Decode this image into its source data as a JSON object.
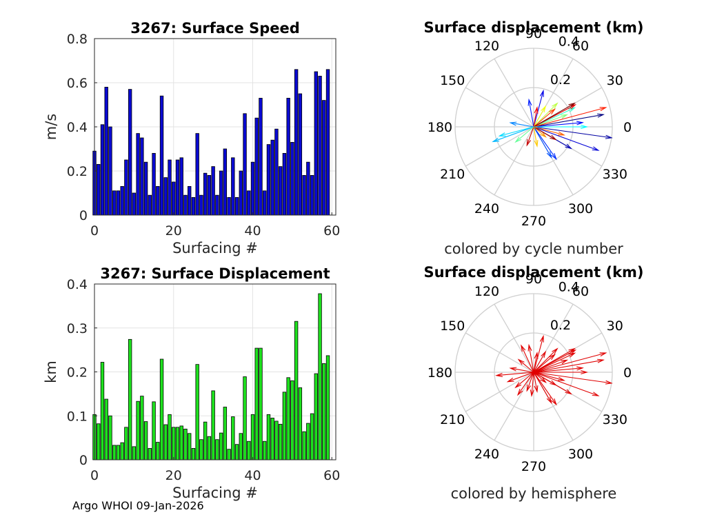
{
  "footer": "Argo WHOI 09-Jan-2026",
  "chart_data": [
    {
      "type": "bar",
      "id": "speed",
      "title": "3267: Surface Speed",
      "xlabel": "Surfacing #",
      "ylabel": "m/s",
      "xlim": [
        0,
        61
      ],
      "ylim": [
        0,
        0.8
      ],
      "xticks": [
        0,
        20,
        40,
        60
      ],
      "yticks": [
        0,
        0.2,
        0.4,
        0.6,
        0.8
      ],
      "bar_color": "#0a0ad2",
      "x": [
        0,
        1,
        2,
        3,
        4,
        5,
        6,
        7,
        8,
        9,
        10,
        11,
        12,
        13,
        14,
        15,
        16,
        17,
        18,
        19,
        20,
        21,
        22,
        23,
        24,
        25,
        26,
        27,
        28,
        29,
        30,
        31,
        32,
        33,
        34,
        35,
        36,
        37,
        38,
        39,
        40,
        41,
        42,
        43,
        44,
        45,
        46,
        47,
        48,
        49,
        50,
        51,
        52,
        53,
        54,
        55,
        56,
        57,
        58,
        59
      ],
      "values": [
        0.29,
        0.23,
        0.41,
        0.58,
        0.4,
        0.11,
        0.11,
        0.13,
        0.25,
        0.57,
        0.1,
        0.37,
        0.35,
        0.24,
        0.09,
        0.28,
        0.13,
        0.54,
        0.17,
        0.25,
        0.15,
        0.25,
        0.26,
        0.09,
        0.13,
        0.08,
        0.37,
        0.09,
        0.19,
        0.18,
        0.22,
        0.09,
        0.2,
        0.3,
        0.08,
        0.26,
        0.08,
        0.2,
        0.46,
        0.11,
        0.24,
        0.44,
        0.53,
        0.11,
        0.32,
        0.34,
        0.39,
        0.22,
        0.28,
        0.53,
        0.33,
        0.66,
        0.55,
        0.18,
        0.24,
        0.18,
        0.65,
        0.63,
        0.52,
        0.66
      ]
    },
    {
      "type": "bar",
      "id": "displacement",
      "title": "3267: Surface Displacement",
      "xlabel": "Surfacing #",
      "ylabel": "km",
      "xlim": [
        0,
        61
      ],
      "ylim": [
        0,
        0.4
      ],
      "xticks": [
        0,
        20,
        40,
        60
      ],
      "yticks": [
        0,
        0.1,
        0.2,
        0.3,
        0.4
      ],
      "bar_color": "#1ee11e",
      "x": [
        0,
        1,
        2,
        3,
        4,
        5,
        6,
        7,
        8,
        9,
        10,
        11,
        12,
        13,
        14,
        15,
        16,
        17,
        18,
        19,
        20,
        21,
        22,
        23,
        24,
        25,
        26,
        27,
        28,
        29,
        30,
        31,
        32,
        33,
        34,
        35,
        36,
        37,
        38,
        39,
        40,
        41,
        42,
        43,
        44,
        45,
        46,
        47,
        48,
        49,
        50,
        51,
        52,
        53,
        54,
        55,
        56,
        57,
        58,
        59
      ],
      "values": [
        0.103,
        0.082,
        0.222,
        0.138,
        0.1,
        0.033,
        0.033,
        0.039,
        0.074,
        0.274,
        0.03,
        0.133,
        0.145,
        0.087,
        0.026,
        0.132,
        0.04,
        0.229,
        0.08,
        0.103,
        0.074,
        0.074,
        0.077,
        0.07,
        0.06,
        0.026,
        0.217,
        0.046,
        0.086,
        0.053,
        0.157,
        0.046,
        0.061,
        0.12,
        0.024,
        0.098,
        0.035,
        0.06,
        0.189,
        0.042,
        0.103,
        0.254,
        0.254,
        0.042,
        0.103,
        0.095,
        0.088,
        0.081,
        0.154,
        0.187,
        0.18,
        0.315,
        0.164,
        0.064,
        0.083,
        0.105,
        0.196,
        0.378,
        0.219,
        0.237
      ]
    },
    {
      "type": "polar-compass",
      "id": "compass-cycle",
      "title": "Surface displacement (km)",
      "caption": "colored by cycle number",
      "rmax": 0.4,
      "rticks": [
        0.2,
        0.4
      ],
      "rtick_labels": [
        "0.2",
        "0.4"
      ],
      "angle_labels": [
        "0",
        "30",
        "60",
        "90",
        "120",
        "150",
        "180",
        "210",
        "240",
        "270",
        "300",
        "330"
      ],
      "colormap": "jet",
      "arrows": [
        {
          "angle": 10,
          "r": 0.36,
          "cycle": 0
        },
        {
          "angle": 352,
          "r": 0.4,
          "cycle": 2
        },
        {
          "angle": 340,
          "r": 0.35,
          "cycle": 5
        },
        {
          "angle": 5,
          "r": 0.25,
          "cycle": 8
        },
        {
          "angle": 330,
          "r": 0.22,
          "cycle": 3
        },
        {
          "angle": 305,
          "r": 0.2,
          "cycle": 10
        },
        {
          "angle": 300,
          "r": 0.18,
          "cycle": 12
        },
        {
          "angle": 75,
          "r": 0.19,
          "cycle": 6
        },
        {
          "angle": 100,
          "r": 0.14,
          "cycle": 9
        },
        {
          "angle": 200,
          "r": 0.22,
          "cycle": 18
        },
        {
          "angle": 195,
          "r": 0.18,
          "cycle": 20
        },
        {
          "angle": 170,
          "r": 0.12,
          "cycle": 15
        },
        {
          "angle": 25,
          "r": 0.23,
          "cycle": 25
        },
        {
          "angle": 20,
          "r": 0.18,
          "cycle": 30
        },
        {
          "angle": 45,
          "r": 0.17,
          "cycle": 33
        },
        {
          "angle": 60,
          "r": 0.12,
          "cycle": 36
        },
        {
          "angle": 280,
          "r": 0.1,
          "cycle": 40
        },
        {
          "angle": 320,
          "r": 0.08,
          "cycle": 43
        },
        {
          "angle": 15,
          "r": 0.38,
          "cycle": 50
        },
        {
          "angle": 28,
          "r": 0.24,
          "cycle": 53
        },
        {
          "angle": 40,
          "r": 0.14,
          "cycle": 48
        },
        {
          "angle": 250,
          "r": 0.1,
          "cycle": 55
        },
        {
          "angle": 330,
          "r": 0.13,
          "cycle": 57
        },
        {
          "angle": 345,
          "r": 0.16,
          "cycle": 46
        },
        {
          "angle": 30,
          "r": 0.24,
          "cycle": 59
        },
        {
          "angle": 80,
          "r": 0.1,
          "cycle": 52
        },
        {
          "angle": 220,
          "r": 0.12,
          "cycle": 28
        },
        {
          "angle": 0,
          "r": 0.27,
          "cycle": 22
        }
      ]
    },
    {
      "type": "polar-compass",
      "id": "compass-hemisphere",
      "title": "Surface displacement (km)",
      "caption": "colored by hemisphere",
      "rmax": 0.4,
      "rticks": [
        0.2,
        0.4
      ],
      "rtick_labels": [
        "0.2",
        "0.4"
      ],
      "angle_labels": [
        "0",
        "30",
        "60",
        "90",
        "120",
        "150",
        "180",
        "210",
        "240",
        "270",
        "300",
        "330"
      ],
      "arrow_color": "#e00000",
      "arrows": [
        {
          "angle": 10,
          "r": 0.36
        },
        {
          "angle": 352,
          "r": 0.4
        },
        {
          "angle": 340,
          "r": 0.35
        },
        {
          "angle": 5,
          "r": 0.25
        },
        {
          "angle": 330,
          "r": 0.22
        },
        {
          "angle": 305,
          "r": 0.2
        },
        {
          "angle": 300,
          "r": 0.18
        },
        {
          "angle": 75,
          "r": 0.19
        },
        {
          "angle": 100,
          "r": 0.14
        },
        {
          "angle": 185,
          "r": 0.19
        },
        {
          "angle": 200,
          "r": 0.14
        },
        {
          "angle": 170,
          "r": 0.12
        },
        {
          "angle": 25,
          "r": 0.23
        },
        {
          "angle": 20,
          "r": 0.18
        },
        {
          "angle": 45,
          "r": 0.17
        },
        {
          "angle": 60,
          "r": 0.12
        },
        {
          "angle": 280,
          "r": 0.1
        },
        {
          "angle": 320,
          "r": 0.08
        },
        {
          "angle": 15,
          "r": 0.38
        },
        {
          "angle": 28,
          "r": 0.24
        },
        {
          "angle": 40,
          "r": 0.14
        },
        {
          "angle": 250,
          "r": 0.1
        },
        {
          "angle": 330,
          "r": 0.13
        },
        {
          "angle": 345,
          "r": 0.16
        },
        {
          "angle": 30,
          "r": 0.24
        },
        {
          "angle": 80,
          "r": 0.1
        },
        {
          "angle": 220,
          "r": 0.12
        },
        {
          "angle": 0,
          "r": 0.27
        },
        {
          "angle": 115,
          "r": 0.15
        },
        {
          "angle": 140,
          "r": 0.1
        },
        {
          "angle": 235,
          "r": 0.14
        },
        {
          "angle": 265,
          "r": 0.12
        }
      ]
    }
  ]
}
